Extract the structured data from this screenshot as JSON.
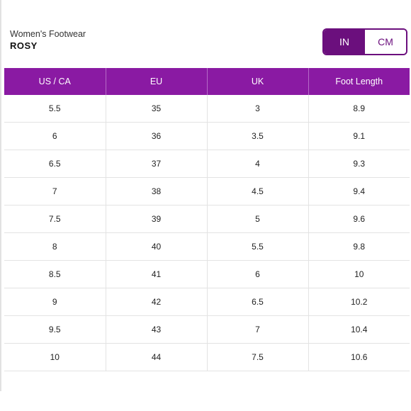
{
  "header": {
    "category": "Women's Footwear",
    "product": "ROSY"
  },
  "unit_toggle": {
    "options": [
      "IN",
      "CM"
    ],
    "selected": "IN"
  },
  "colors": {
    "accent": "#8a1aa3",
    "toggle_active": "#6b0f7d"
  },
  "table": {
    "columns": [
      "US / CA",
      "EU",
      "UK",
      "Foot Length"
    ],
    "rows": [
      [
        "5.5",
        "35",
        "3",
        "8.9"
      ],
      [
        "6",
        "36",
        "3.5",
        "9.1"
      ],
      [
        "6.5",
        "37",
        "4",
        "9.3"
      ],
      [
        "7",
        "38",
        "4.5",
        "9.4"
      ],
      [
        "7.5",
        "39",
        "5",
        "9.6"
      ],
      [
        "8",
        "40",
        "5.5",
        "9.8"
      ],
      [
        "8.5",
        "41",
        "6",
        "10"
      ],
      [
        "9",
        "42",
        "6.5",
        "10.2"
      ],
      [
        "9.5",
        "43",
        "7",
        "10.4"
      ],
      [
        "10",
        "44",
        "7.5",
        "10.6"
      ]
    ]
  }
}
